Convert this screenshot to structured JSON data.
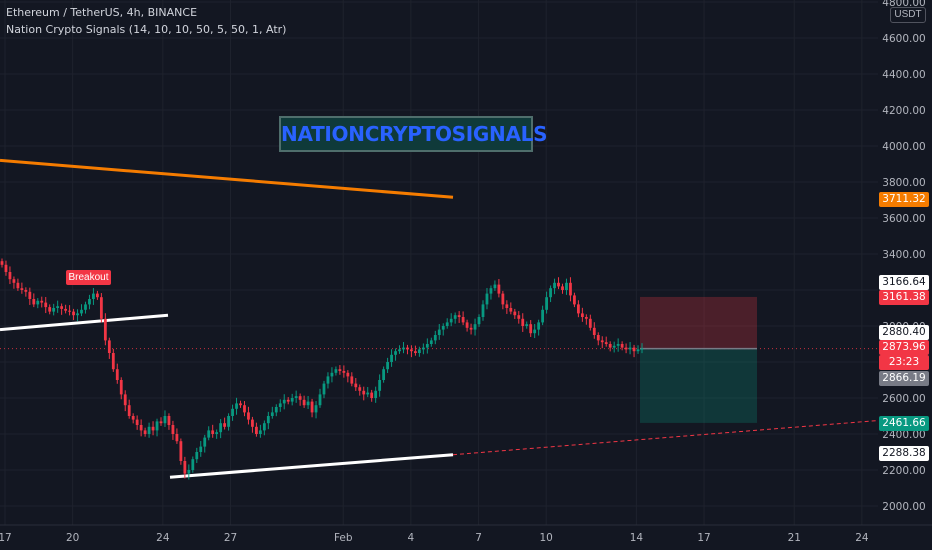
{
  "header": {
    "symbol_line": "Ethereum / TetherUS, 4h, BINANCE",
    "indicator_line": "Nation Crypto Signals  (14, 10, 10, 50, 5, 50, 1, Atr)"
  },
  "watermark": {
    "text": "NATIONCRYPTOSIGNALS"
  },
  "breakout_label": "Breakout",
  "currency_tag": "USDT",
  "price_tags": [
    {
      "label": "3711.32",
      "value": 3711.32,
      "bg": "#f57c00",
      "fg": "#ffffff"
    },
    {
      "label": "3166.64",
      "value": 3166.64,
      "bg": "#ffffff",
      "fg": "#131722"
    },
    {
      "label": "3161.38",
      "value": 3161.38,
      "bg": "#f23645",
      "fg": "#ffffff"
    },
    {
      "label": "2880.40",
      "value": 2880.4,
      "bg": "#ffffff",
      "fg": "#131722"
    },
    {
      "label": "2873.96",
      "value": 2873.96,
      "bg": "#f23645",
      "fg": "#ffffff"
    },
    {
      "label": "23:23",
      "value": 2873.96,
      "bg": "#f23645",
      "fg": "#ffffff"
    },
    {
      "label": "2866.19",
      "value": 2866.19,
      "bg": "#787b86",
      "fg": "#ffffff"
    },
    {
      "label": "2461.66",
      "value": 2461.66,
      "bg": "#089981",
      "fg": "#ffffff"
    },
    {
      "label": "2288.38",
      "value": 2288.38,
      "bg": "#ffffff",
      "fg": "#131722"
    }
  ],
  "colors": {
    "background": "#131722",
    "up": "#089981",
    "down": "#f23645",
    "grid": "#1e222d",
    "axis_text": "#b2b5be",
    "orange_line": "#f57c00",
    "white_line": "#ffffff"
  },
  "chart_data": {
    "type": "candlestick",
    "title": "Ethereum / TetherUS, 4h, BINANCE",
    "y_unit": "USDT",
    "ylim": [
      1900,
      4900
    ],
    "y_ticks": [
      2000,
      2200,
      2400,
      2600,
      2800,
      3000,
      3200,
      3400,
      3600,
      3800,
      4000,
      4200,
      4400,
      4600,
      4800
    ],
    "y_tick_labels": [
      "2000.00",
      "2200.00",
      "2400.00",
      "2600.00",
      "2800.00",
      "3000.00",
      "3200.00",
      "3400.00",
      "3600.00",
      "3800.00",
      "4000.00",
      "4200.00",
      "4400.00",
      "4600.00",
      "4800.00"
    ],
    "x_ticks": [
      "Jan 17",
      "Jan 20",
      "Jan 24",
      "Jan 27",
      "Feb 1",
      "Feb 4",
      "Feb 7",
      "Feb 10",
      "Feb 14",
      "Feb 17",
      "Feb 21",
      "Feb 24"
    ],
    "x_tick_labels": [
      "17",
      "20",
      "24",
      "27",
      "Feb",
      "4",
      "7",
      "10",
      "14",
      "17",
      "21",
      "24"
    ],
    "grid": true,
    "current_price": 2873.96,
    "trend_lines": [
      {
        "color": "orange",
        "from": {
          "date": "Jan 17",
          "price": 3920
        },
        "to": {
          "date": "Feb 6",
          "price": 3715
        }
      },
      {
        "color": "white",
        "from": {
          "date": "Jan 17",
          "price": 2980
        },
        "to": {
          "date": "Jan 23",
          "price": 3060
        }
      },
      {
        "color": "white",
        "from": {
          "date": "Jan 24",
          "price": 2160
        },
        "to": {
          "date": "Feb 6",
          "price": 2285
        },
        "extended_dashed_to": {
          "date": "Feb 25",
          "price": 2475
        }
      }
    ],
    "trade_zones": [
      {
        "kind": "stop",
        "top": 3161.38,
        "bottom": 2873.96,
        "from": "Feb 14",
        "to": "Feb 19"
      },
      {
        "kind": "target",
        "top": 2873.96,
        "bottom": 2461.66,
        "from": "Feb 14",
        "to": "Feb 19"
      }
    ],
    "candles_close": [
      3340,
      3300,
      3260,
      3240,
      3210,
      3200,
      3190,
      3150,
      3120,
      3140,
      3130,
      3105,
      3080,
      3100,
      3110,
      3095,
      3085,
      3080,
      3060,
      3070,
      3090,
      3120,
      3150,
      3180,
      3160,
      3040,
      2920,
      2850,
      2760,
      2700,
      2620,
      2560,
      2500,
      2480,
      2450,
      2420,
      2400,
      2440,
      2420,
      2470,
      2460,
      2500,
      2450,
      2400,
      2360,
      2250,
      2180,
      2200,
      2260,
      2300,
      2330,
      2380,
      2420,
      2400,
      2410,
      2460,
      2440,
      2500,
      2540,
      2570,
      2560,
      2520,
      2480,
      2440,
      2400,
      2420,
      2460,
      2500,
      2520,
      2550,
      2570,
      2590,
      2580,
      2600,
      2610,
      2590,
      2560,
      2580,
      2520,
      2560,
      2620,
      2680,
      2720,
      2740,
      2760,
      2750,
      2740,
      2720,
      2680,
      2660,
      2640,
      2620,
      2630,
      2600,
      2640,
      2700,
      2760,
      2800,
      2840,
      2860,
      2870,
      2880,
      2870,
      2860,
      2850,
      2870,
      2880,
      2900,
      2920,
      2950,
      2980,
      3000,
      3020,
      3040,
      3060,
      3050,
      3020,
      2990,
      2980,
      3010,
      3050,
      3120,
      3180,
      3210,
      3230,
      3180,
      3120,
      3100,
      3080,
      3060,
      3040,
      3000,
      3010,
      2960,
      2980,
      3020,
      3090,
      3160,
      3210,
      3240,
      3220,
      3200,
      3240,
      3170,
      3120,
      3070,
      3050,
      3040,
      2990,
      2950,
      2920,
      2910,
      2900,
      2880,
      2890,
      2900,
      2880,
      2870,
      2880,
      2860,
      2870,
      2874
    ]
  }
}
